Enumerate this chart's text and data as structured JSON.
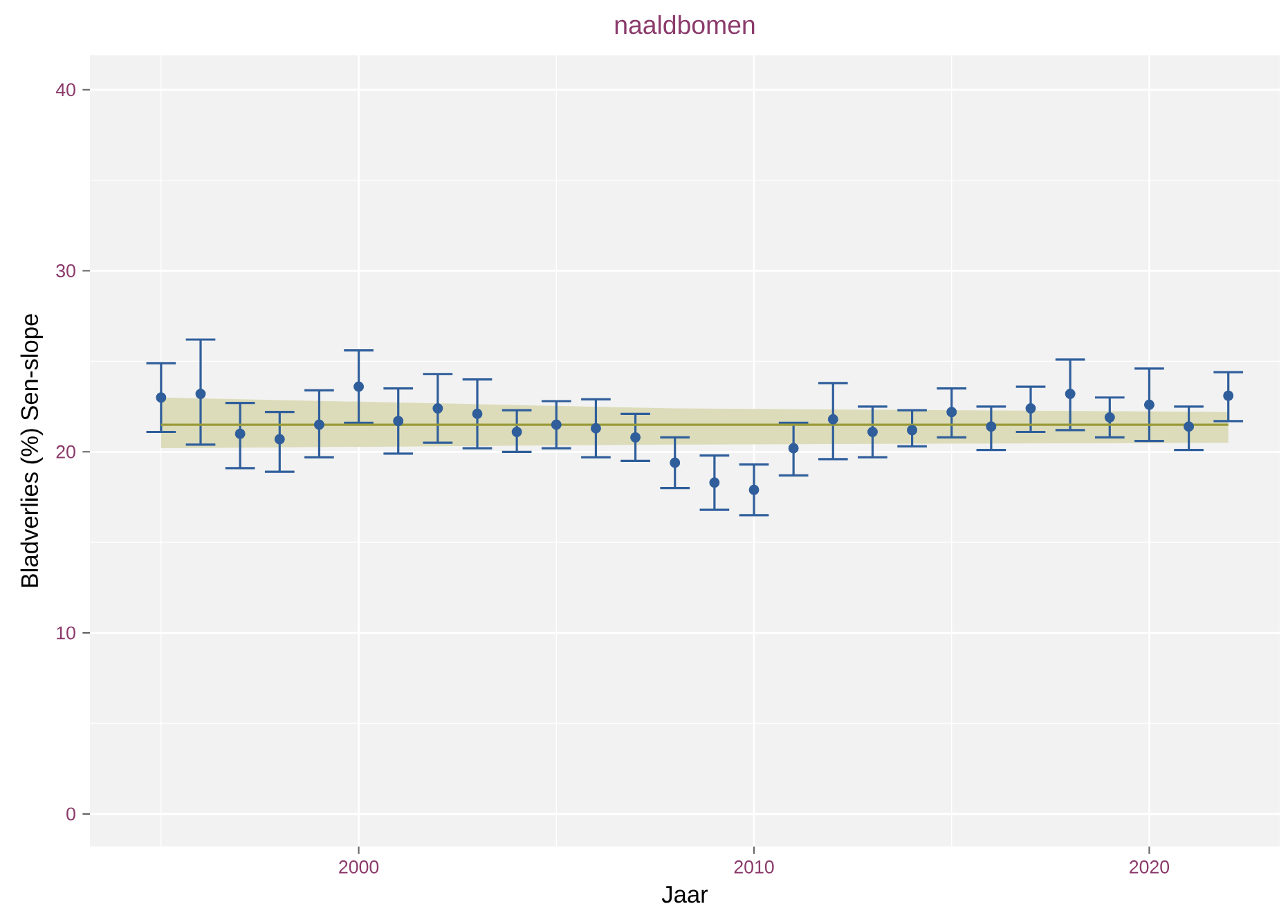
{
  "chart_data": {
    "type": "scatter",
    "title": "naaldbomen",
    "xlabel": "Jaar",
    "ylabel": "Bladverlies (%) Sen-slope",
    "x": [
      1995,
      1996,
      1997,
      1998,
      1999,
      2000,
      2001,
      2002,
      2003,
      2004,
      2005,
      2006,
      2007,
      2008,
      2009,
      2010,
      2011,
      2012,
      2013,
      2014,
      2015,
      2016,
      2017,
      2018,
      2019,
      2020,
      2021,
      2022
    ],
    "series": [
      {
        "color": "#2f5e9b",
        "marker": "circle",
        "values": [
          23.0,
          23.2,
          21.0,
          20.7,
          21.5,
          23.6,
          21.7,
          22.4,
          22.1,
          21.1,
          21.5,
          21.3,
          20.8,
          19.4,
          18.3,
          17.9,
          20.2,
          21.8,
          21.1,
          21.2,
          22.2,
          21.4,
          22.4,
          23.2,
          21.9,
          22.6,
          21.4,
          23.1
        ],
        "errors": [
          [
            21.1,
            24.9
          ],
          [
            20.4,
            26.2
          ],
          [
            19.1,
            22.7
          ],
          [
            18.9,
            22.2
          ],
          [
            19.7,
            23.4
          ],
          [
            21.6,
            25.6
          ],
          [
            19.9,
            23.5
          ],
          [
            20.5,
            24.3
          ],
          [
            20.2,
            24.0
          ],
          [
            20.0,
            22.3
          ],
          [
            20.2,
            22.8
          ],
          [
            19.7,
            22.9
          ],
          [
            19.5,
            22.1
          ],
          [
            18.0,
            20.8
          ],
          [
            16.8,
            19.8
          ],
          [
            16.5,
            19.3
          ],
          [
            18.7,
            21.6
          ],
          [
            19.6,
            23.8
          ],
          [
            19.7,
            22.5
          ],
          [
            20.3,
            22.3
          ],
          [
            20.8,
            23.5
          ],
          [
            20.1,
            22.5
          ],
          [
            21.1,
            23.6
          ],
          [
            21.2,
            25.1
          ],
          [
            20.8,
            23.0
          ],
          [
            20.6,
            24.6
          ],
          [
            20.1,
            22.5
          ],
          [
            21.7,
            24.4
          ]
        ]
      },
      {
        "type": "line",
        "color": "#9a9a3a",
        "marker": "none",
        "x": [
          1995,
          2008,
          2022
        ],
        "values": [
          21.5,
          21.5,
          21.5
        ],
        "lower": [
          20.2,
          20.4,
          20.5
        ],
        "upper": [
          23.0,
          22.4,
          22.2
        ]
      }
    ],
    "xlim": [
      1993.2,
      2023.3
    ],
    "ylim": [
      -1.8,
      41.9
    ],
    "xticks": [
      2000,
      2010,
      2020
    ],
    "yticks": [
      0,
      10,
      20,
      30,
      40
    ],
    "grid": true
  }
}
